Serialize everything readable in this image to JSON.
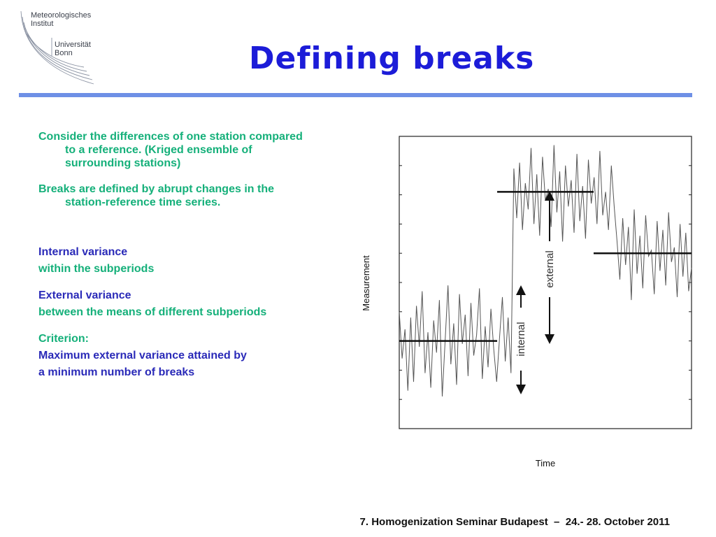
{
  "logo": {
    "line1": "Meteorologisches",
    "line2": "Institut",
    "line3": "Universität",
    "line4": "Bonn"
  },
  "title": "Defining breaks",
  "body": {
    "p1": "Consider the differences of one station compared to a reference. (Kriged ensemble of surrounding stations)",
    "p2": "Breaks are defined by abrupt changes in the station-reference time series.",
    "p3": "Internal variance",
    "p4": "within the subperiods",
    "p5": "External variance",
    "p6": "between the means of different subperiods",
    "p7": "Criterion:",
    "p8": "Maximum external variance attained by",
    "p9": "a minimum number of breaks"
  },
  "chart_data": {
    "type": "line",
    "xlabel": "Time",
    "ylabel": "Measurement",
    "ylim": [
      0,
      10
    ],
    "breaks": [
      0.335,
      0.665
    ],
    "segment_means": [
      {
        "x_start": 0.0,
        "x_end": 0.335,
        "value": 3.0
      },
      {
        "x_start": 0.335,
        "x_end": 0.665,
        "value": 8.1
      },
      {
        "x_start": 0.665,
        "x_end": 1.0,
        "value": 6.0
      }
    ],
    "annotations": [
      "internal",
      "external"
    ],
    "series": [
      {
        "values": [
          4.0,
          2.4,
          3.4,
          1.3,
          3.8,
          1.6,
          4.2,
          2.8,
          4.7,
          1.9,
          3.3,
          1.4,
          3.7,
          2.6,
          4.4,
          1.1,
          3.0,
          4.9,
          2.2,
          3.6,
          1.5,
          4.6,
          2.9,
          3.9,
          1.8,
          4.3,
          2.5,
          3.2,
          4.8,
          1.7,
          3.5,
          2.1,
          4.1,
          2.7,
          1.6,
          3.1,
          4.5,
          2.3,
          3.8,
          1.9,
          8.9,
          7.2,
          9.1,
          6.8,
          8.4,
          7.5,
          9.6,
          7.0,
          8.7,
          6.6,
          9.3,
          7.8,
          8.2,
          6.9,
          9.7,
          7.4,
          8.8,
          6.4,
          9.0,
          7.6,
          8.5,
          6.7,
          9.4,
          7.1,
          8.3,
          6.5,
          9.2,
          7.7,
          8.6,
          7.0,
          9.5,
          7.3,
          8.1,
          6.8,
          9.0,
          7.6,
          6.4,
          5.1,
          7.2,
          5.6,
          6.9,
          4.4,
          7.5,
          5.3,
          6.6,
          4.8,
          7.3,
          5.9,
          6.1,
          4.6,
          7.1,
          5.4,
          6.8,
          4.9,
          7.4,
          5.7,
          6.2,
          4.5,
          7.0,
          5.2,
          6.7,
          4.7,
          5.5
        ]
      }
    ]
  }
}
